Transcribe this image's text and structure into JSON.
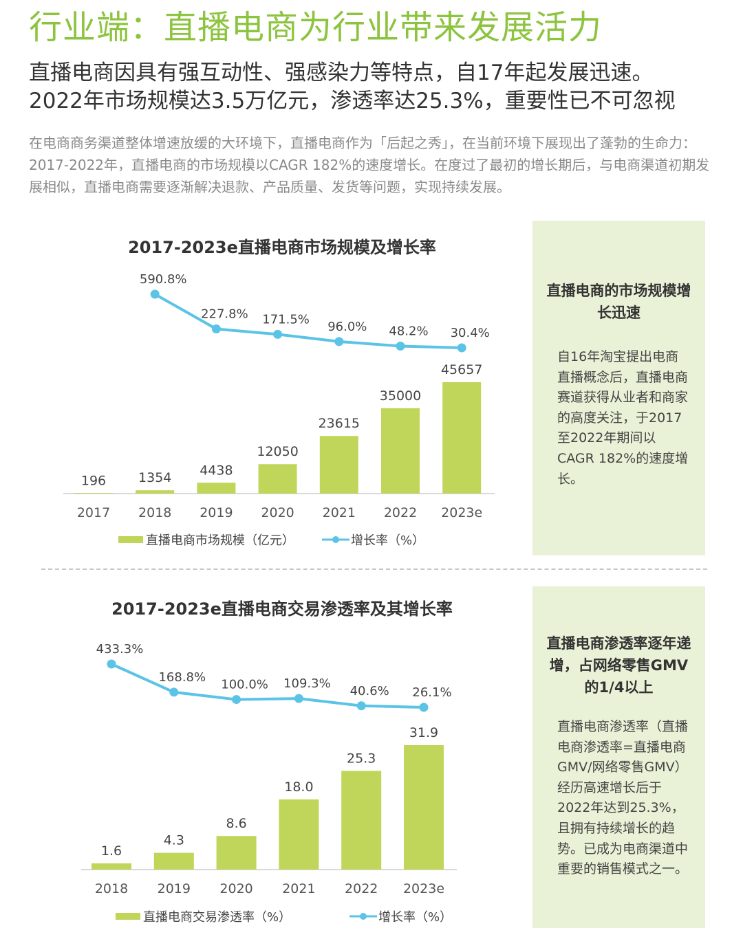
{
  "page": {
    "title": "行业端：直播电商为行业带来发展活力",
    "subtitle_line1": "直播电商因具有强互动性、强感染力等特点，自17年起发展迅速。",
    "subtitle_line2": "2022年市场规模达3.5万亿元，渗透率达25.3%，重要性已不可忽视",
    "intro": "在电商商务渠道整体增速放缓的大环境下，直播电商作为「后起之秀」，在当前环境下展现出了蓬勃的生命力：2017-2022年，直播电商的市场规模以CAGR 182%的速度增长。在度过了最初的增长期后，与电商渠道初期发展相似，直播电商需要逐渐解决退款、产品质量、发货等问题，实现持续发展。"
  },
  "colors": {
    "accent": "#8dc43f",
    "bar": "#c0d65a",
    "line": "#5bc3e6",
    "side_bg": "#e9f2d7"
  },
  "side1": {
    "heading": "直播电商的市场规模增长迅速",
    "body": "自16年淘宝提出电商直播概念后，直播电商赛道获得从业者和商家的高度关注，于2017至2022年期间以CAGR 182%的速度增长。"
  },
  "side2": {
    "heading": "直播电商渗透率逐年递增，占网络零售GMV的1/4以上",
    "body": "直播电商渗透率（直播电商渗透率=直播电商GMV/网络零售GMV）经历高速增长后于2022年达到25.3%，且拥有持续增长的趋势。已成为电商渠道中重要的销售模式之一。"
  },
  "chart_data": [
    {
      "type": "bar",
      "title": "2017-2023e直播电商市场规模及增长率",
      "categories": [
        "2017",
        "2018",
        "2019",
        "2020",
        "2021",
        "2022",
        "2023e"
      ],
      "series": [
        {
          "name": "直播电商市场规模（亿元）",
          "type": "bar",
          "values": [
            196,
            1354,
            4438,
            12050,
            23615,
            35000,
            45657
          ],
          "labels": [
            "196",
            "1354",
            "4438",
            "12050",
            "23615",
            "35000",
            "45657"
          ]
        },
        {
          "name": "增长率（%）",
          "type": "line",
          "values": [
            null,
            590.8,
            227.8,
            171.5,
            96.0,
            48.2,
            30.4
          ],
          "labels": [
            null,
            "590.8%",
            "227.8%",
            "171.5%",
            "96.0%",
            "48.2%",
            "30.4%"
          ]
        }
      ],
      "legend": "bottom"
    },
    {
      "type": "bar",
      "title": "2017-2023e直播电商交易渗透率及其增长率",
      "categories": [
        "2018",
        "2019",
        "2020",
        "2021",
        "2022",
        "2023e"
      ],
      "series": [
        {
          "name": "直播电商交易渗透率（%）",
          "type": "bar",
          "values": [
            1.6,
            4.3,
            8.6,
            18.0,
            25.3,
            31.9
          ],
          "labels": [
            "1.6",
            "4.3",
            "8.6",
            "18.0",
            "25.3",
            "31.9"
          ]
        },
        {
          "name": "增长率（%）",
          "type": "line",
          "values": [
            433.3,
            168.8,
            100.0,
            109.3,
            40.6,
            26.1
          ],
          "labels": [
            "433.3%",
            "168.8%",
            "100.0%",
            "109.3%",
            "40.6%",
            "26.1%"
          ]
        }
      ],
      "legend": "bottom"
    }
  ]
}
